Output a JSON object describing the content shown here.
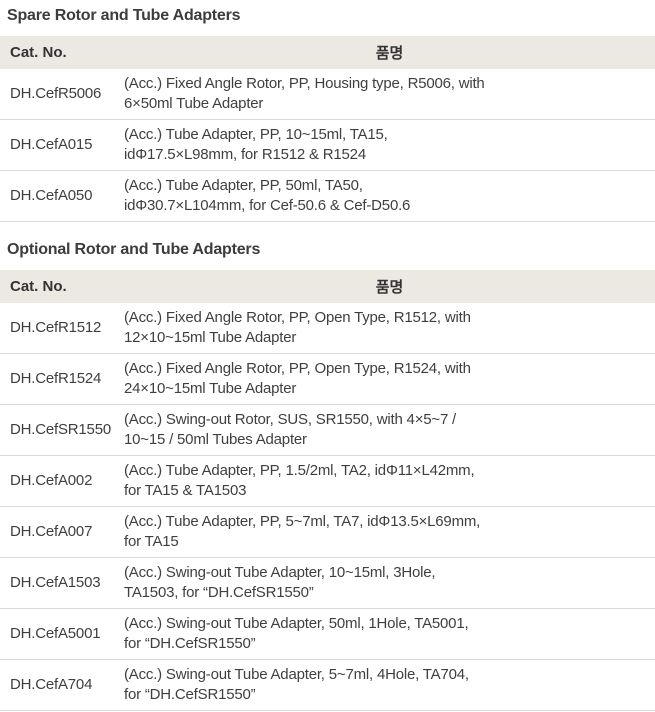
{
  "page": {
    "background_color": "#ffffff",
    "text_color": "#3f3f3f",
    "header_bg_color": "#ece9e2",
    "divider_color": "#d9d9d9"
  },
  "tables": [
    {
      "title": "Spare Rotor and Tube Adapters",
      "headers": [
        "Cat. No.",
        "품명"
      ],
      "rows": [
        {
          "cat": "DH.CefR5006",
          "desc": "(Acc.) Fixed Angle Rotor, PP, Housing type, R5006, with\n6×50ml Tube Adapter"
        },
        {
          "cat": "DH.CefA015",
          "desc": "(Acc.) Tube Adapter, PP, 10~15ml, TA15,\nidΦ17.5×L98mm, for R1512 & R1524"
        },
        {
          "cat": "DH.CefA050",
          "desc": "(Acc.) Tube Adapter, PP, 50ml, TA50,\nidΦ30.7×L104mm, for Cef-50.6 & Cef-D50.6"
        }
      ]
    },
    {
      "title": "Optional Rotor and Tube Adapters",
      "headers": [
        "Cat. No.",
        "품명"
      ],
      "rows": [
        {
          "cat": "DH.CefR1512",
          "desc": "(Acc.) Fixed Angle Rotor, PP, Open Type, R1512, with\n12×10~15ml Tube Adapter"
        },
        {
          "cat": "DH.CefR1524",
          "desc": "(Acc.) Fixed Angle Rotor, PP, Open Type, R1524, with\n24×10~15ml Tube Adapter"
        },
        {
          "cat": "DH.CefSR1550",
          "desc": "(Acc.) Swing-out Rotor, SUS, SR1550, with 4×5~7 /\n10~15 / 50ml Tubes Adapter"
        },
        {
          "cat": "DH.CefA002",
          "desc": "(Acc.) Tube Adapter, PP, 1.5/2ml, TA2, idΦ11×L42mm,\nfor TA15 & TA1503"
        },
        {
          "cat": "DH.CefA007",
          "desc": "(Acc.) Tube Adapter, PP, 5~7ml, TA7, idΦ13.5×L69mm,\nfor TA15"
        },
        {
          "cat": "DH.CefA1503",
          "desc": "(Acc.) Swing-out Tube Adapter, 10~15ml, 3Hole,\nTA1503, for “DH.CefSR1550”"
        },
        {
          "cat": "DH.CefA5001",
          "desc": "(Acc.) Swing-out Tube Adapter, 50ml, 1Hole, TA5001,\nfor “DH.CefSR1550”"
        },
        {
          "cat": "DH.CefA704",
          "desc": "(Acc.) Swing-out Tube Adapter, 5~7ml, 4Hole, TA704,\nfor “DH.CefSR1550”"
        }
      ]
    }
  ]
}
